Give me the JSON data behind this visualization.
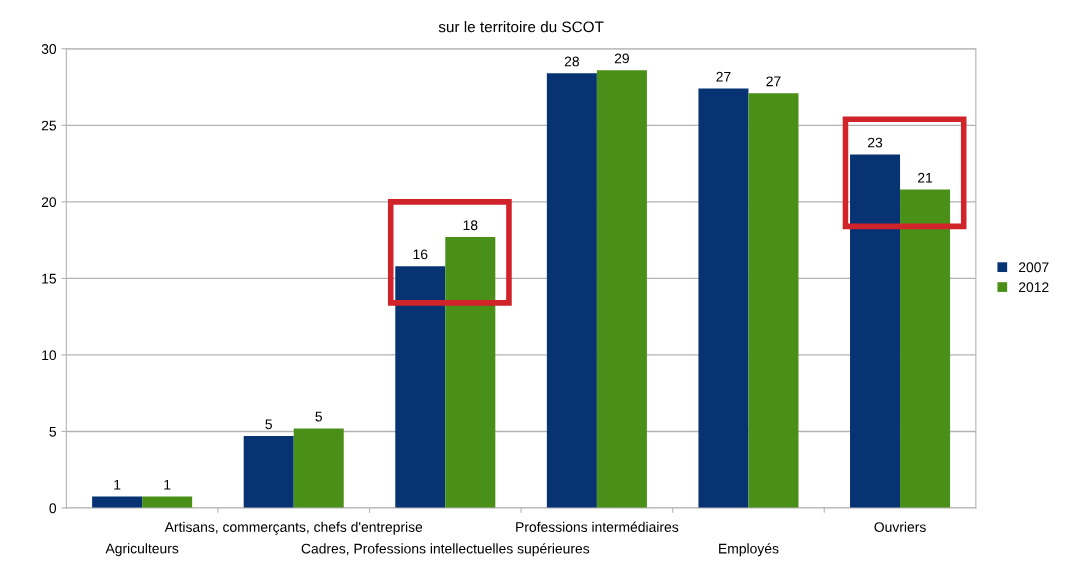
{
  "chart_data": {
    "type": "bar",
    "title": "sur le territoire du SCOT",
    "categories": [
      "Agriculteurs",
      "Artisans, commerçants, chefs d'entreprise",
      "Cadres, Professions intellectuelles supérieures",
      "Professions intermédiaires",
      "Employés",
      "Ouvriers"
    ],
    "series": [
      {
        "name": "2007",
        "color": "#073373",
        "values": [
          0.75,
          4.7,
          15.8,
          28.4,
          27.4,
          23.1
        ],
        "value_labels": [
          "1",
          "5",
          "16",
          "28",
          "27",
          "23"
        ]
      },
      {
        "name": "2012",
        "color": "#4a8f18",
        "values": [
          0.75,
          5.2,
          17.7,
          28.6,
          27.1,
          20.8
        ],
        "value_labels": [
          "1",
          "5",
          "18",
          "29",
          "27",
          "21"
        ]
      }
    ],
    "ylim": [
      0,
      30
    ],
    "yticks": [
      0,
      5,
      10,
      15,
      20,
      25,
      30
    ],
    "grid": "y",
    "legend": "right"
  }
}
